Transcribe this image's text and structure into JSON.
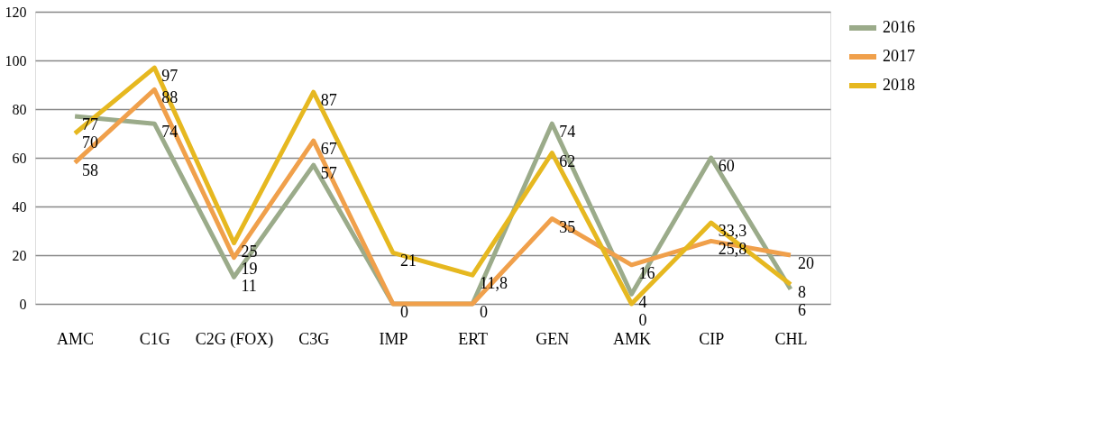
{
  "chart_data": {
    "type": "line",
    "categories": [
      "AMC",
      "C1G",
      "C2G (FOX)",
      "C3G",
      "IMP",
      "ERT",
      "GEN",
      "AMK",
      "CIP",
      "CHL"
    ],
    "series": [
      {
        "name": "2016",
        "color": "#9bab8a",
        "values": [
          77,
          74,
          11,
          57,
          0,
          0,
          74,
          4,
          60,
          6
        ],
        "value_labels": [
          "77",
          "74",
          "11",
          "57",
          null,
          null,
          "74",
          "4",
          "60",
          "6"
        ]
      },
      {
        "name": "2017",
        "color": "#f0a04b",
        "values": [
          58,
          88,
          19,
          67,
          0,
          0,
          35,
          16,
          25.8,
          20
        ],
        "value_labels": [
          "58",
          "88",
          "19",
          "67",
          "0",
          "0",
          "35",
          "16",
          "25,8",
          "20"
        ]
      },
      {
        "name": "2018",
        "color": "#e6b820",
        "values": [
          70,
          97,
          25,
          87,
          21,
          11.8,
          62,
          0,
          33.3,
          8
        ],
        "value_labels": [
          "70",
          "97",
          "25",
          "87",
          "21",
          "11,8",
          "62",
          "0",
          "33,3",
          "8"
        ]
      }
    ],
    "ylim": [
      0,
      120
    ],
    "yticks": [
      0,
      20,
      40,
      60,
      80,
      100,
      120
    ],
    "grid": "y",
    "legend": "right",
    "marker": "none",
    "line_style": "solid"
  }
}
